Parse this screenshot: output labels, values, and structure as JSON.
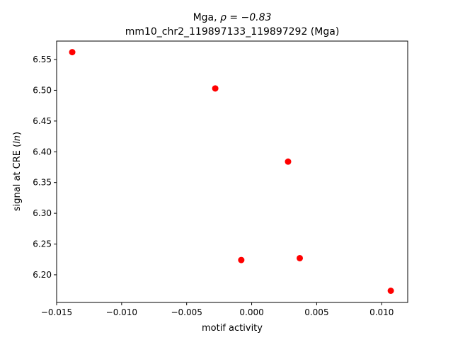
{
  "chart_data": {
    "type": "scatter",
    "title_line1_prefix": "Mga, ",
    "title_line1_rho": "ρ = −0.83",
    "title_line2": "mm10_chr2_119897133_119897292 (Mga)",
    "xlabel": "motif activity",
    "ylabel_prefix": "signal at CRE (",
    "ylabel_ln": "ln",
    "ylabel_suffix": ")",
    "xlim": [
      -0.015,
      0.012
    ],
    "ylim": [
      6.155,
      6.58
    ],
    "xticks": [
      -0.015,
      -0.01,
      -0.005,
      0.0,
      0.005,
      0.01
    ],
    "xtick_labels": [
      "−0.015",
      "−0.010",
      "−0.005",
      "0.000",
      "0.005",
      "0.010"
    ],
    "yticks": [
      6.2,
      6.25,
      6.3,
      6.35,
      6.4,
      6.45,
      6.5,
      6.55
    ],
    "ytick_labels": [
      "6.20",
      "6.25",
      "6.30",
      "6.35",
      "6.40",
      "6.45",
      "6.50",
      "6.55"
    ],
    "grid": false,
    "marker_color": "#ff0000",
    "points": [
      {
        "x": -0.0138,
        "y": 6.562
      },
      {
        "x": -0.0028,
        "y": 6.503
      },
      {
        "x": -0.0008,
        "y": 6.224
      },
      {
        "x": 0.0028,
        "y": 6.384
      },
      {
        "x": 0.0037,
        "y": 6.227
      },
      {
        "x": 0.0107,
        "y": 6.174
      }
    ]
  }
}
